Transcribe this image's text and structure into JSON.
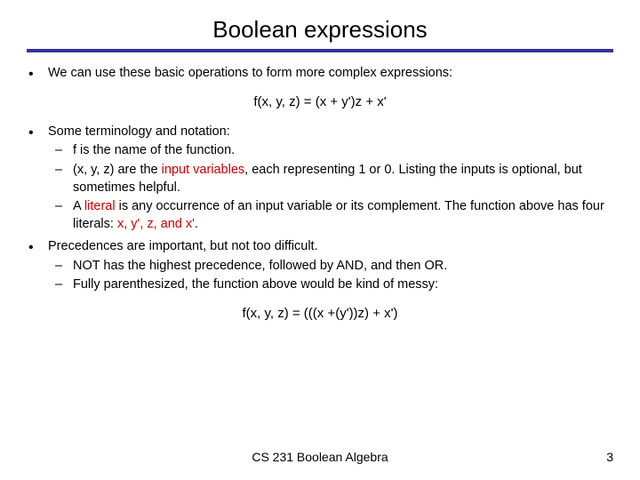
{
  "title": "Boolean expressions",
  "colors": {
    "rule": "#333399",
    "highlight": "#cc0000",
    "text": "#000000",
    "bg": "#ffffff"
  },
  "bullet1": "We can use these basic operations to form more complex expressions:",
  "formula1": "f(x, y, z) = (x + y')z + x'",
  "bullet2": "Some terminology and notation:",
  "sub2": {
    "a": "f is the name of the function.",
    "b_pre": "(x, y, z) are the ",
    "b_hl": "input variables",
    "b_post": ", each representing 1 or 0. Listing the inputs is optional, but sometimes helpful.",
    "c_pre": "A ",
    "c_hl": "literal",
    "c_mid": " is any occurrence of an input variable or its complement. The function above has four literals: ",
    "c_lits": "x, y', z, and x'",
    "c_end": "."
  },
  "bullet3": "Precedences are important, but not too difficult.",
  "sub3": {
    "a": "NOT has the highest precedence, followed by AND, and then OR.",
    "b": "Fully parenthesized, the function above would be kind of messy:"
  },
  "formula2": "f(x, y, z) = (((x +(y'))z) + x')",
  "footer": "CS 231 Boolean Algebra",
  "page": "3"
}
